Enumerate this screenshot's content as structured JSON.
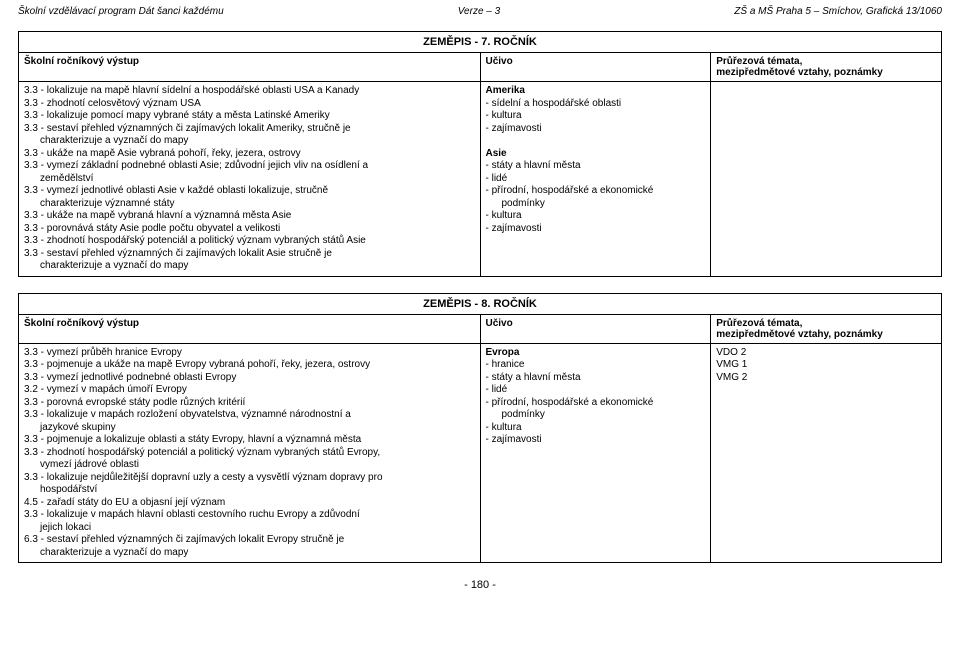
{
  "header": {
    "left": "Školní vzdělávací program Dát šanci každému",
    "center": "Verze – 3",
    "right": "ZŠ a MŠ Praha 5 – Smíchov, Grafická 13/1060"
  },
  "table7": {
    "title": "ZEMĚPIS - 7. ROČNÍK",
    "col_out": "Školní ročníkový výstup",
    "col_uc": "Učivo",
    "col_pr_line1": "Průřezová témata,",
    "col_pr_line2": "mezipředmětové vztahy, poznámky",
    "outcomes": [
      "3.3 - lokalizuje na mapě hlavní sídelní a hospodářské oblasti USA a Kanady",
      "3.3 - zhodnotí celosvětový význam USA",
      "3.3 - lokalizuje pomocí mapy vybrané státy a města Latinské Ameriky",
      "3.3 - sestaví přehled významných či zajímavých lokalit Ameriky, stručně je",
      "        charakterizuje a vyznačí do mapy",
      "3.3 - ukáže na mapě Asie vybraná  pohoří, řeky, jezera, ostrovy",
      "3.3 - vymezí základní podnebné oblasti Asie; zdůvodní jejich vliv na osídlení a",
      "        zemědělství",
      "3.3 - vymezí jednotlivé oblasti Asie v každé oblasti lokalizuje, stručně",
      "        charakterizuje významné státy",
      "3.3 - ukáže na mapě vybraná hlavní a významná města Asie",
      "3.3 - porovnává státy Asie podle počtu obyvatel a  velikosti",
      "3.3 - zhodnotí hospodářský potenciál a politický význam vybraných států Asie",
      "3.3 - sestaví přehled významných či zajímavých lokalit Asie stručně je",
      "        charakterizuje a vyznačí do mapy"
    ],
    "ucivo": [
      "Amerika",
      "- sídelní a hospodářské oblasti",
      "- kultura",
      "- zajímavosti",
      "",
      "Asie",
      "- státy a hlavní města",
      "- lidé",
      "- přírodní, hospodářské a ekonomické",
      "  podmínky",
      "- kultura",
      "- zajímavosti"
    ],
    "notes": []
  },
  "table8": {
    "title": "ZEMĚPIS - 8. ROČNÍK",
    "col_out": "Školní ročníkový výstup",
    "col_uc": "Učivo",
    "col_pr_line1": "Průřezová témata,",
    "col_pr_line2": "mezipředmětové vztahy, poznámky",
    "outcomes": [
      "3.3 - vymezí průběh hranice Evropy",
      "3.3 - pojmenuje a ukáže na mapě Evropy vybraná pohoří, řeky, jezera, ostrovy",
      "3.3 - vymezí jednotlivé podnebné oblasti Evropy",
      "3.2 - vymezí v mapách úmoří Evropy",
      "3.3 - porovná evropské státy podle různých kritérií",
      "3.3 - lokalizuje v mapách rozložení obyvatelstva, významné národnostní a",
      "        jazykové skupiny",
      "3.3 - pojmenuje a lokalizuje oblasti a státy Evropy, hlavní a významná města",
      "3.3 - zhodnotí hospodářský potenciál a politický význam vybraných států Evropy,",
      "        vymezí jádrové oblasti",
      "3.3 - lokalizuje nejdůležitější dopravní uzly a cesty a vysvětlí význam dopravy pro",
      "        hospodářství",
      "4.5 - zařadí státy do EU a objasní její význam",
      "3.3 - lokalizuje v mapách hlavní oblasti cestovního ruchu Evropy  a zdůvodní",
      "        jejich lokaci",
      "6.3 - sestaví přehled významných či zajímavých lokalit Evropy  stručně je",
      "        charakterizuje a vyznačí do mapy"
    ],
    "ucivo": [
      "Evropa",
      "- hranice",
      "- státy a hlavní města",
      "- lidé",
      "- přírodní, hospodářské a ekonomické",
      "  podmínky",
      "- kultura",
      "- zajímavosti"
    ],
    "notes": [
      "VDO 2",
      "VMG 1",
      "VMG 2"
    ]
  },
  "page_number": "- 180 -"
}
